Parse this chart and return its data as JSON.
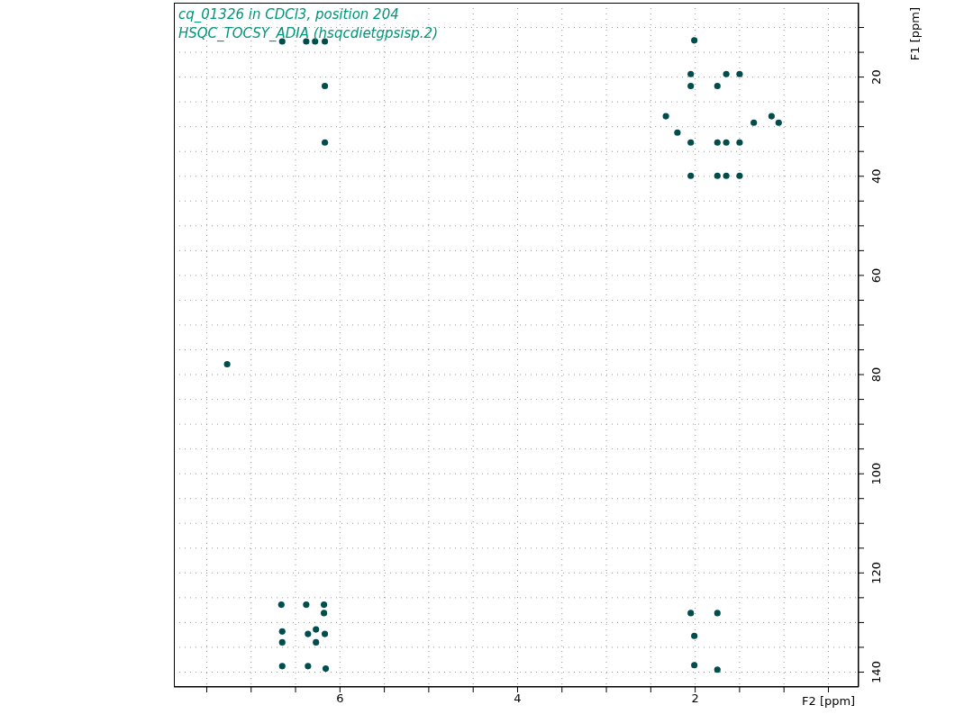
{
  "chart_data": {
    "type": "scatter",
    "title": "cq_01326 in CDCl3, position 204",
    "subtitle": "HSQC_TOCSY_ADIA (hsqcdietgpsisp.2)",
    "xlabel": "F2 [ppm]",
    "ylabel": "F1 [ppm]",
    "x": [
      2.01,
      2.05,
      2.05,
      1.75,
      1.65,
      1.5,
      1.06,
      1.34,
      2.05,
      1.75,
      1.65,
      1.5,
      2.05,
      1.75,
      1.65,
      1.5,
      2.33,
      2.2,
      1.14,
      6.65,
      6.38,
      6.28,
      6.17,
      6.17,
      6.17,
      7.27,
      6.66,
      6.38,
      6.18,
      6.18,
      6.65,
      6.36,
      6.27,
      6.17,
      6.65,
      6.27,
      6.65,
      6.36,
      6.16,
      2.05,
      1.75,
      2.01,
      2.01,
      1.75
    ],
    "values": [
      12.6,
      19.4,
      21.8,
      21.8,
      19.4,
      19.4,
      29.2,
      29.2,
      33.2,
      33.2,
      33.2,
      33.2,
      39.9,
      39.9,
      39.9,
      39.9,
      27.9,
      31.2,
      27.9,
      12.8,
      12.8,
      12.8,
      12.8,
      21.8,
      33.2,
      77.9,
      126.4,
      126.4,
      126.4,
      128.1,
      131.8,
      132.3,
      131.4,
      132.3,
      134.0,
      134.0,
      138.8,
      138.8,
      139.3,
      128.1,
      128.1,
      132.7,
      138.6,
      139.5
    ],
    "color": "#004d4d",
    "marker": "circle",
    "grid": true,
    "xlim": [
      7.87,
      0.16
    ],
    "xticks": [
      {
        "value": 7.5,
        "label": null
      },
      {
        "value": 7,
        "label": null
      },
      {
        "value": 6.5,
        "label": null
      },
      6,
      {
        "value": 5.5,
        "label": null
      },
      {
        "value": 5,
        "label": null
      },
      {
        "value": 4.5,
        "label": null
      },
      4,
      {
        "value": 3.5,
        "label": null
      },
      {
        "value": 3,
        "label": null
      },
      {
        "value": 2.5,
        "label": null
      },
      2,
      {
        "value": 1.5,
        "label": null
      },
      {
        "value": 1,
        "label": null
      },
      {
        "value": 0.5,
        "label": null
      }
    ],
    "ylim": [
      143,
      5
    ],
    "yticks": [
      {
        "value": 10,
        "label": null
      },
      {
        "value": 15,
        "label": null
      },
      20,
      {
        "value": 25,
        "label": null
      },
      {
        "value": 30,
        "label": null
      },
      {
        "value": 35,
        "label": null
      },
      40,
      {
        "value": 45,
        "label": null
      },
      {
        "value": 50,
        "label": null
      },
      {
        "value": 55,
        "label": null
      },
      60,
      {
        "value": 65,
        "label": null
      },
      {
        "value": 70,
        "label": null
      },
      {
        "value": 75,
        "label": null
      },
      80,
      {
        "value": 85,
        "label": null
      },
      {
        "value": 90,
        "label": null
      },
      {
        "value": 95,
        "label": null
      },
      100,
      {
        "value": 105,
        "label": null
      },
      {
        "value": 110,
        "label": null
      },
      {
        "value": 115,
        "label": null
      },
      120,
      {
        "value": 125,
        "label": null
      },
      {
        "value": 130,
        "label": null
      },
      {
        "value": 135,
        "label": null
      },
      140
    ]
  }
}
